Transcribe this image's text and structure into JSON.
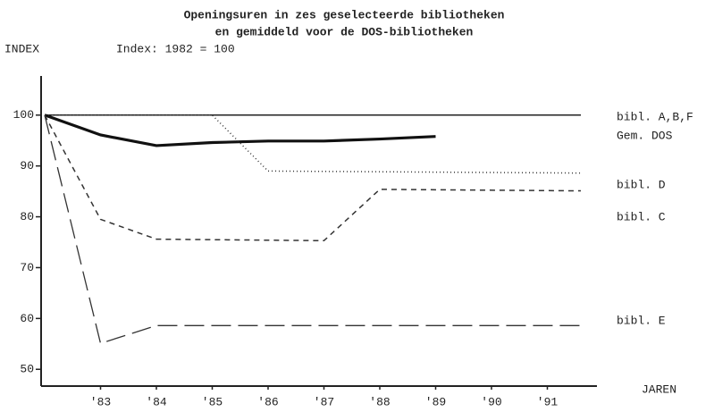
{
  "chart_data": {
    "type": "line",
    "title": "Openingsuren in zes geselecteerde bibliotheken",
    "subtitle": "en gemiddeld voor de DOS-bibliotheken",
    "y_label": "INDEX",
    "note": "Index: 1982 = 100",
    "x_label": "JAREN",
    "xlim": [
      1982,
      1991.6
    ],
    "xticks": [
      {
        "value": 1983,
        "label": "'83"
      },
      {
        "value": 1984,
        "label": "'84"
      },
      {
        "value": 1985,
        "label": "'85"
      },
      {
        "value": 1986,
        "label": "'86"
      },
      {
        "value": 1987,
        "label": "'87"
      },
      {
        "value": 1988,
        "label": "'88"
      },
      {
        "value": 1989,
        "label": "'89"
      },
      {
        "value": 1990,
        "label": "'90"
      },
      {
        "value": 1991,
        "label": "'91"
      }
    ],
    "ylim": [
      46.7,
      107.7
    ],
    "yticks": [
      50,
      60,
      70,
      80,
      90,
      100
    ],
    "series": [
      {
        "name": "bibl. A,B,F",
        "color": "#222222",
        "width": 1.5,
        "dash": "none",
        "x": [
          1982,
          1991.6
        ],
        "values": [
          100,
          100
        ]
      },
      {
        "name": "Gem. DOS",
        "color": "#111111",
        "width": 3.2,
        "dash": "none",
        "x": [
          1982,
          1983,
          1984,
          1985,
          1986,
          1987,
          1988,
          1989
        ],
        "values": [
          100,
          96.1,
          94,
          94.6,
          94.9,
          94.9,
          95.3,
          95.8
        ]
      },
      {
        "name": "bibl. D",
        "color": "#333333",
        "width": 1.5,
        "dash": "1 3",
        "x": [
          1982,
          1985,
          1986,
          1991.6
        ],
        "values": [
          100,
          100,
          89,
          88.6
        ]
      },
      {
        "name": "bibl. C",
        "color": "#333333",
        "width": 1.5,
        "dash": "6 5",
        "x": [
          1982,
          1983,
          1984,
          1987,
          1988,
          1991.6
        ],
        "values": [
          100,
          79.5,
          75.6,
          75.3,
          85.4,
          85.1
        ]
      },
      {
        "name": "bibl. E",
        "color": "#333333",
        "width": 1.3,
        "dash": "22 8",
        "x": [
          1982,
          1983,
          1984,
          1991.6
        ],
        "values": [
          100,
          55.1,
          58.6,
          58.6
        ]
      }
    ]
  }
}
